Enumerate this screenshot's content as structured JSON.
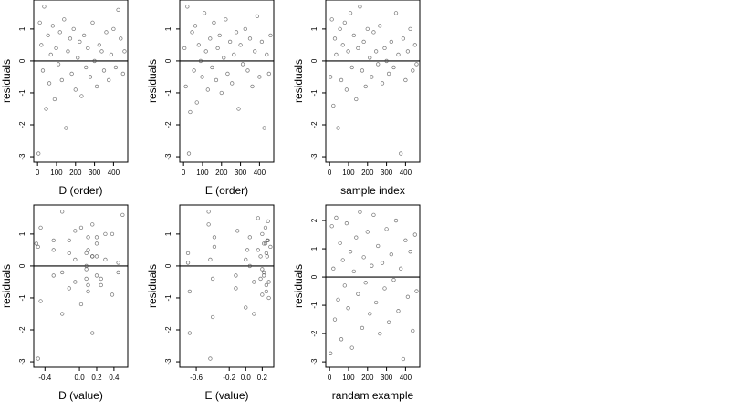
{
  "chart_data": [
    {
      "type": "scatter",
      "xlabel": "D (order)",
      "ylabel": "residuals",
      "color": "#444444",
      "hline": 0,
      "xlim": [
        -20,
        475
      ],
      "ylim": [
        -3.17,
        1.91
      ],
      "xticks": [
        0,
        100,
        200,
        300,
        400
      ],
      "yticks": [
        -3,
        -2,
        -1,
        0,
        1
      ],
      "x": [
        5,
        12,
        20,
        28,
        35,
        45,
        55,
        62,
        70,
        80,
        90,
        98,
        110,
        118,
        128,
        140,
        150,
        160,
        172,
        180,
        190,
        200,
        212,
        222,
        232,
        245,
        255,
        265,
        278,
        290,
        300,
        312,
        325,
        338,
        350,
        362,
        375,
        388,
        400,
        412,
        425,
        438,
        450,
        458
      ],
      "values": [
        -2.9,
        1.2,
        0.5,
        -0.3,
        1.7,
        -1.5,
        0.8,
        -0.7,
        0.2,
        1.1,
        -1.2,
        0.4,
        -0.1,
        0.9,
        -0.6,
        1.3,
        -2.1,
        0.3,
        0.7,
        -0.4,
        1.0,
        -0.9,
        0.1,
        0.6,
        -1.1,
        0.8,
        -0.2,
        0.4,
        -0.5,
        1.2,
        0.0,
        -0.8,
        0.5,
        0.3,
        -0.3,
        0.9,
        -0.6,
        0.2,
        1.0,
        -0.2,
        1.6,
        0.7,
        -0.4,
        0.3
      ]
    },
    {
      "type": "scatter",
      "xlabel": "E (order)",
      "ylabel": "residuals",
      "color": "#444444",
      "hline": 0,
      "xlim": [
        -20,
        475
      ],
      "ylim": [
        -3.17,
        1.91
      ],
      "xticks": [
        0,
        100,
        200,
        300,
        400
      ],
      "yticks": [
        -3,
        -2,
        -1,
        0,
        1
      ],
      "x": [
        5,
        12,
        20,
        28,
        35,
        45,
        55,
        62,
        70,
        80,
        90,
        98,
        110,
        118,
        128,
        140,
        150,
        160,
        172,
        180,
        190,
        200,
        212,
        222,
        232,
        245,
        255,
        265,
        278,
        290,
        300,
        312,
        325,
        338,
        350,
        362,
        375,
        388,
        400,
        412,
        425,
        438,
        450,
        458
      ],
      "values": [
        0.4,
        -0.8,
        1.7,
        -2.9,
        -1.6,
        0.9,
        -0.3,
        1.1,
        -1.3,
        0.5,
        0.0,
        -0.5,
        1.5,
        0.3,
        -0.9,
        0.7,
        -0.2,
        1.2,
        -0.6,
        0.4,
        0.8,
        -1.0,
        0.1,
        1.3,
        -0.4,
        0.6,
        -0.7,
        0.2,
        0.9,
        -1.5,
        0.5,
        -0.1,
        1.0,
        -0.3,
        0.7,
        -0.8,
        0.3,
        1.4,
        -0.5,
        0.6,
        -2.1,
        0.2,
        -0.4,
        0.8
      ]
    },
    {
      "type": "scatter",
      "xlabel": "sample index",
      "ylabel": "residuals",
      "color": "#444444",
      "hline": 0,
      "xlim": [
        -20,
        475
      ],
      "ylim": [
        -3.17,
        1.91
      ],
      "xticks": [
        0,
        100,
        200,
        300,
        400
      ],
      "yticks": [
        -3,
        -2,
        -1,
        0,
        1
      ],
      "x": [
        5,
        12,
        20,
        28,
        35,
        45,
        55,
        62,
        70,
        80,
        90,
        98,
        110,
        118,
        128,
        140,
        150,
        160,
        172,
        180,
        190,
        200,
        212,
        222,
        232,
        245,
        255,
        265,
        278,
        290,
        300,
        312,
        325,
        338,
        350,
        362,
        375,
        388,
        400,
        412,
        425,
        438,
        450,
        458
      ],
      "values": [
        -0.5,
        1.3,
        -1.4,
        0.7,
        0.2,
        -2.1,
        1.0,
        -0.6,
        0.5,
        1.2,
        -0.9,
        0.3,
        1.5,
        -0.2,
        0.8,
        -1.2,
        0.4,
        1.7,
        -0.3,
        0.6,
        -0.8,
        1.0,
        0.1,
        -0.5,
        0.9,
        0.3,
        -0.1,
        1.1,
        -0.7,
        0.4,
        0.0,
        -0.4,
        0.6,
        -0.2,
        1.5,
        0.2,
        -2.9,
        0.7,
        -0.6,
        0.3,
        1.0,
        -0.3,
        0.5,
        -0.1
      ]
    },
    {
      "type": "scatter",
      "xlabel": "D (value)",
      "ylabel": "residuals",
      "color": "#444444",
      "hline": 0,
      "xlim": [
        -0.53,
        0.56
      ],
      "ylim": [
        -3.17,
        1.91
      ],
      "xticks": [
        -0.4,
        {
          "value": 0,
          "label": "0.0"
        },
        0.2,
        0.4
      ],
      "yticks": [
        -3,
        -2,
        -1,
        0,
        1
      ],
      "x": [
        -0.48,
        -0.45,
        -0.3,
        -0.3,
        -0.2,
        -0.2,
        -0.12,
        -0.12,
        -0.05,
        -0.05,
        0.02,
        0.08,
        0.08,
        0.1,
        0.1,
        0.15,
        0.15,
        0.2,
        0.2,
        0.25,
        0.3,
        0.38,
        0.45,
        -0.48,
        -0.45,
        -0.3,
        -0.2,
        -0.12,
        -0.05,
        0.02,
        0.08,
        0.1,
        0.1,
        0.15,
        0.2,
        0.2,
        0.25,
        0.3,
        0.38,
        0.45,
        0.5,
        -0.5,
        0.08,
        0.15
      ],
      "values": [
        -2.9,
        1.2,
        0.5,
        -0.3,
        1.7,
        -1.5,
        0.8,
        -0.7,
        0.2,
        1.1,
        -1.2,
        0.4,
        -0.1,
        0.9,
        -0.6,
        1.3,
        -2.1,
        0.3,
        0.7,
        -0.4,
        1.0,
        -0.9,
        0.1,
        0.6,
        -1.1,
        0.8,
        -0.2,
        0.4,
        -0.5,
        1.2,
        0.0,
        -0.8,
        0.5,
        0.3,
        -0.3,
        0.9,
        -0.6,
        0.2,
        1.0,
        -0.2,
        1.6,
        0.7,
        -0.4,
        0.3
      ]
    },
    {
      "type": "scatter",
      "xlabel": "E (value)",
      "ylabel": "residuals",
      "color": "#444444",
      "hline": 0,
      "xlim": [
        -0.8,
        0.34
      ],
      "ylim": [
        -3.17,
        1.91
      ],
      "xticks": [
        -0.6,
        -0.2,
        {
          "value": 0,
          "label": "0.0"
        },
        0.2
      ],
      "yticks": [
        -3,
        -2,
        -1,
        0,
        1
      ],
      "x": [
        -0.7,
        -0.68,
        -0.45,
        -0.43,
        -0.4,
        -0.38,
        -0.12,
        -0.1,
        0.0,
        0.02,
        0.05,
        0.1,
        0.15,
        0.18,
        0.2,
        0.22,
        0.22,
        0.24,
        0.25,
        0.25,
        0.27,
        0.28,
        -0.7,
        -0.45,
        -0.4,
        -0.38,
        -0.12,
        0.0,
        0.05,
        0.1,
        0.15,
        0.2,
        0.2,
        0.22,
        0.24,
        0.25,
        0.26,
        0.27,
        0.28,
        0.3,
        -0.68,
        -0.43,
        0.18,
        0.26
      ],
      "values": [
        0.4,
        -0.8,
        1.7,
        -2.9,
        -1.6,
        0.9,
        -0.3,
        1.1,
        -1.3,
        0.5,
        0.0,
        -0.5,
        1.5,
        0.3,
        -0.9,
        0.7,
        -0.2,
        1.2,
        -0.6,
        0.4,
        0.8,
        -1.0,
        0.1,
        1.3,
        -0.4,
        0.6,
        -0.7,
        0.2,
        0.9,
        -1.5,
        0.5,
        -0.1,
        1.0,
        -0.3,
        0.7,
        -0.8,
        0.3,
        1.4,
        -0.5,
        0.6,
        -2.1,
        0.2,
        -0.4,
        0.8
      ]
    },
    {
      "type": "scatter",
      "xlabel": "randam example",
      "ylabel": "residuals",
      "color": "#444444",
      "hline": 0,
      "xlim": [
        -20,
        475
      ],
      "ylim": [
        -3.19,
        2.55
      ],
      "xticks": [
        0,
        100,
        200,
        300,
        400
      ],
      "yticks": [
        -3,
        -2,
        -1,
        0,
        1,
        2
      ],
      "x": [
        5,
        12,
        20,
        28,
        35,
        45,
        55,
        62,
        70,
        80,
        90,
        98,
        110,
        118,
        128,
        140,
        150,
        160,
        172,
        180,
        190,
        200,
        212,
        222,
        232,
        245,
        255,
        265,
        278,
        290,
        300,
        312,
        325,
        338,
        350,
        362,
        375,
        388,
        400,
        412,
        425,
        438,
        450,
        458
      ],
      "values": [
        -2.7,
        1.8,
        0.3,
        -1.5,
        2.1,
        -0.8,
        1.2,
        -2.2,
        0.6,
        -0.3,
        1.9,
        -1.1,
        0.9,
        -2.5,
        0.2,
        1.4,
        -0.6,
        2.3,
        -1.8,
        0.7,
        -0.2,
        1.6,
        -1.3,
        0.4,
        2.2,
        -0.9,
        1.1,
        -2.0,
        0.5,
        -0.4,
        1.7,
        -1.6,
        0.8,
        -0.1,
        2.0,
        -1.2,
        0.3,
        -2.9,
        1.3,
        -0.7,
        0.9,
        -1.9,
        1.5,
        -0.5
      ]
    }
  ]
}
